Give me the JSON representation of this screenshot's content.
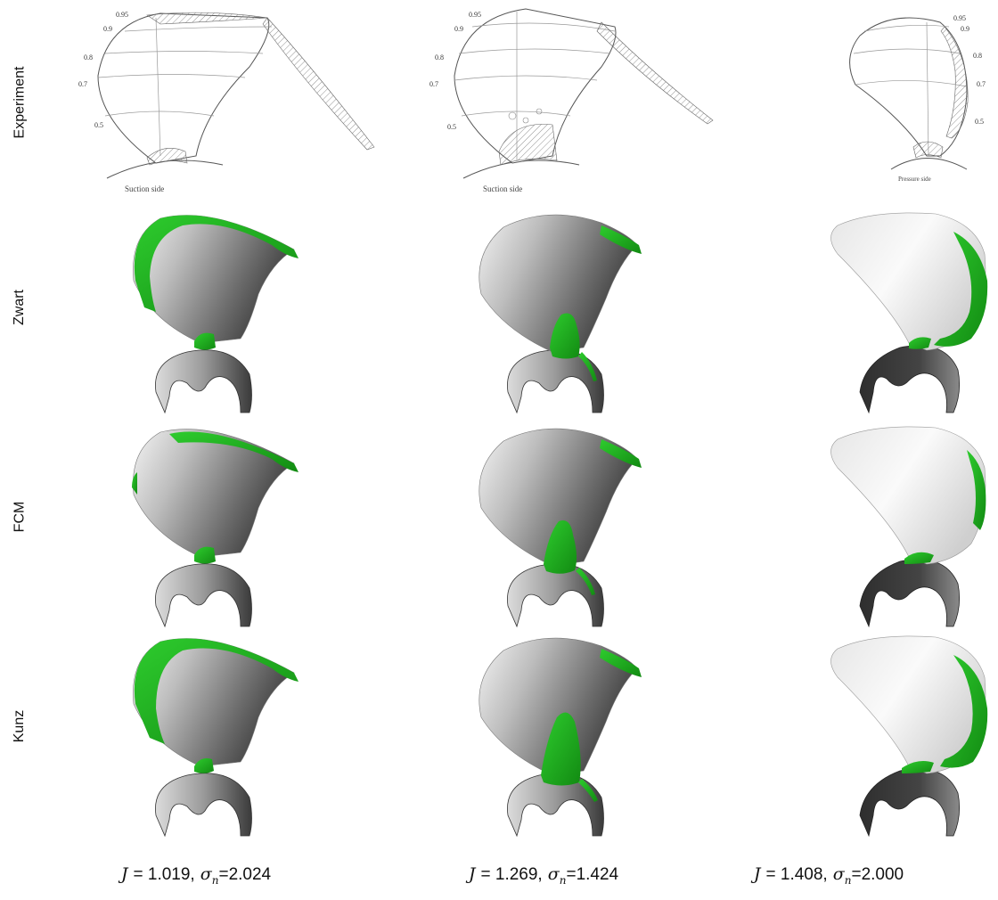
{
  "rows": [
    {
      "label": "Experiment"
    },
    {
      "label": "Zwart"
    },
    {
      "label": "FCM"
    },
    {
      "label": "Kunz"
    }
  ],
  "experiment_sketches": [
    {
      "side_label": "Suction side",
      "radius_labels": [
        "0.95",
        "0.9",
        "0.8",
        "0.7",
        "0.5"
      ]
    },
    {
      "side_label": "Suction side",
      "radius_labels": [
        "0.95",
        "0.9",
        "0.8",
        "0.7",
        "0.5"
      ]
    },
    {
      "side_label": "Pressure side",
      "radius_labels": [
        "0.95",
        "0.9",
        "0.8",
        "0.7",
        "0.5"
      ]
    }
  ],
  "captions": [
    {
      "J_symbol": "J",
      "J_value": "= 1.019,",
      "sigma_symbol": "σ",
      "sigma_sub": "n",
      "sigma_value": "=2.024"
    },
    {
      "J_symbol": "J",
      "J_value": "= 1.269,",
      "sigma_symbol": "σ",
      "sigma_sub": "n",
      "sigma_value": "=1.424"
    },
    {
      "J_symbol": "J",
      "J_value": "= 1.408,",
      "sigma_symbol": "σ",
      "sigma_sub": "n",
      "sigma_value": "=2.000"
    }
  ],
  "colors": {
    "cavity": "#22bb22",
    "cavity_dark": "#138a13",
    "blade_light": "#f2f2f2",
    "blade_dark": "#4a4a4a",
    "sketch_line": "#555555"
  }
}
